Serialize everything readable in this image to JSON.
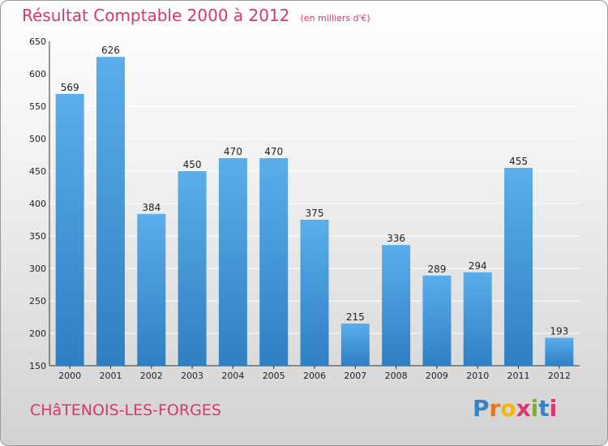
{
  "title": "Résultat Comptable 2000 à 2012",
  "subtitle": "(en milliers d'€)",
  "commune": "CHâTENOIS-LES-FORGES",
  "logo": {
    "letters": [
      "P",
      "r",
      "o",
      "x",
      "i",
      "t",
      "i"
    ],
    "colors": [
      "#2e86c9",
      "#e8731c",
      "#f2b705",
      "#d9356f",
      "#7ab51d",
      "#2e86c9",
      "#d9356f"
    ]
  },
  "colors": {
    "bar_light": "#5aaeea",
    "bar_dark": "#2f7fc4",
    "title": "#d9356f"
  },
  "chart_data": {
    "type": "bar",
    "categories": [
      "2000",
      "2001",
      "2002",
      "2003",
      "2004",
      "2005",
      "2006",
      "2007",
      "2008",
      "2009",
      "2010",
      "2011",
      "2012"
    ],
    "values": [
      569,
      626,
      384,
      450,
      470,
      470,
      375,
      215,
      336,
      289,
      294,
      455,
      193
    ],
    "title": "Résultat Comptable 2000 à 2012",
    "subtitle": "(en milliers d'€)",
    "ylim": [
      150,
      650
    ],
    "yticks": [
      150,
      200,
      250,
      300,
      350,
      400,
      450,
      500,
      550,
      600,
      650
    ],
    "grid": true,
    "legend": "none"
  }
}
